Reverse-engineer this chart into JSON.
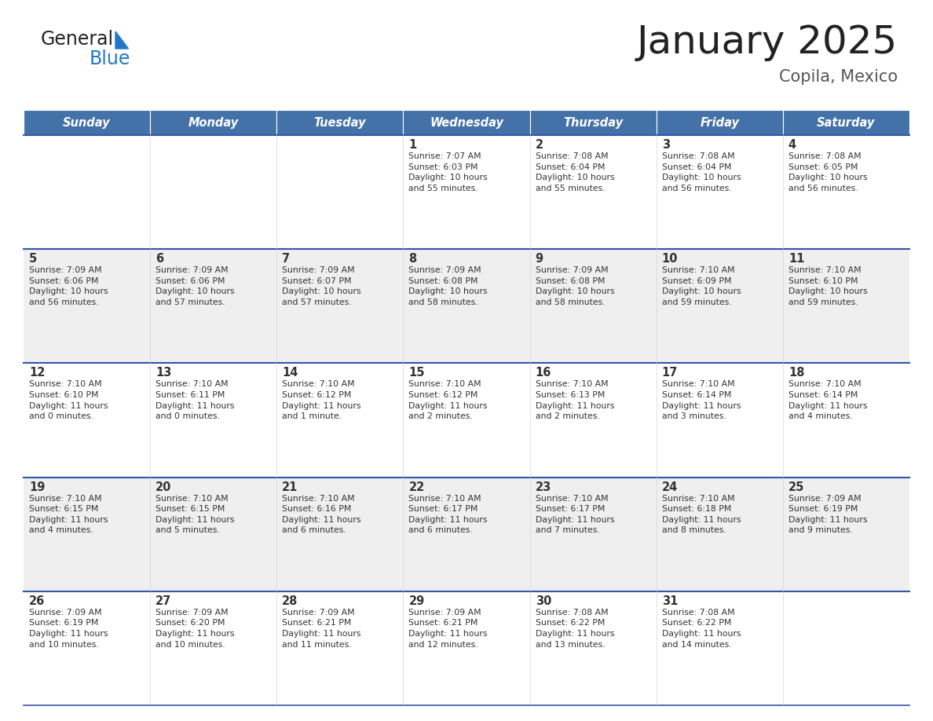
{
  "title": "January 2025",
  "subtitle": "Copila, Mexico",
  "header_color": "#4472A8",
  "header_text_color": "#FFFFFF",
  "days_of_week": [
    "Sunday",
    "Monday",
    "Tuesday",
    "Wednesday",
    "Thursday",
    "Friday",
    "Saturday"
  ],
  "background_color": "#FFFFFF",
  "cell_bg_white": "#FFFFFF",
  "cell_bg_gray": "#EFEFEF",
  "row_line_color": "#3355AA",
  "text_color": "#333333",
  "title_color": "#222222",
  "subtitle_color": "#555555",
  "logo_general_color": "#222222",
  "logo_blue_color": "#2277CC",
  "logo_triangle_color": "#2277CC",
  "calendar": [
    [
      {
        "day": "",
        "info": ""
      },
      {
        "day": "",
        "info": ""
      },
      {
        "day": "",
        "info": ""
      },
      {
        "day": "1",
        "info": "Sunrise: 7:07 AM\nSunset: 6:03 PM\nDaylight: 10 hours\nand 55 minutes."
      },
      {
        "day": "2",
        "info": "Sunrise: 7:08 AM\nSunset: 6:04 PM\nDaylight: 10 hours\nand 55 minutes."
      },
      {
        "day": "3",
        "info": "Sunrise: 7:08 AM\nSunset: 6:04 PM\nDaylight: 10 hours\nand 56 minutes."
      },
      {
        "day": "4",
        "info": "Sunrise: 7:08 AM\nSunset: 6:05 PM\nDaylight: 10 hours\nand 56 minutes."
      }
    ],
    [
      {
        "day": "5",
        "info": "Sunrise: 7:09 AM\nSunset: 6:06 PM\nDaylight: 10 hours\nand 56 minutes."
      },
      {
        "day": "6",
        "info": "Sunrise: 7:09 AM\nSunset: 6:06 PM\nDaylight: 10 hours\nand 57 minutes."
      },
      {
        "day": "7",
        "info": "Sunrise: 7:09 AM\nSunset: 6:07 PM\nDaylight: 10 hours\nand 57 minutes."
      },
      {
        "day": "8",
        "info": "Sunrise: 7:09 AM\nSunset: 6:08 PM\nDaylight: 10 hours\nand 58 minutes."
      },
      {
        "day": "9",
        "info": "Sunrise: 7:09 AM\nSunset: 6:08 PM\nDaylight: 10 hours\nand 58 minutes."
      },
      {
        "day": "10",
        "info": "Sunrise: 7:10 AM\nSunset: 6:09 PM\nDaylight: 10 hours\nand 59 minutes."
      },
      {
        "day": "11",
        "info": "Sunrise: 7:10 AM\nSunset: 6:10 PM\nDaylight: 10 hours\nand 59 minutes."
      }
    ],
    [
      {
        "day": "12",
        "info": "Sunrise: 7:10 AM\nSunset: 6:10 PM\nDaylight: 11 hours\nand 0 minutes."
      },
      {
        "day": "13",
        "info": "Sunrise: 7:10 AM\nSunset: 6:11 PM\nDaylight: 11 hours\nand 0 minutes."
      },
      {
        "day": "14",
        "info": "Sunrise: 7:10 AM\nSunset: 6:12 PM\nDaylight: 11 hours\nand 1 minute."
      },
      {
        "day": "15",
        "info": "Sunrise: 7:10 AM\nSunset: 6:12 PM\nDaylight: 11 hours\nand 2 minutes."
      },
      {
        "day": "16",
        "info": "Sunrise: 7:10 AM\nSunset: 6:13 PM\nDaylight: 11 hours\nand 2 minutes."
      },
      {
        "day": "17",
        "info": "Sunrise: 7:10 AM\nSunset: 6:14 PM\nDaylight: 11 hours\nand 3 minutes."
      },
      {
        "day": "18",
        "info": "Sunrise: 7:10 AM\nSunset: 6:14 PM\nDaylight: 11 hours\nand 4 minutes."
      }
    ],
    [
      {
        "day": "19",
        "info": "Sunrise: 7:10 AM\nSunset: 6:15 PM\nDaylight: 11 hours\nand 4 minutes."
      },
      {
        "day": "20",
        "info": "Sunrise: 7:10 AM\nSunset: 6:15 PM\nDaylight: 11 hours\nand 5 minutes."
      },
      {
        "day": "21",
        "info": "Sunrise: 7:10 AM\nSunset: 6:16 PM\nDaylight: 11 hours\nand 6 minutes."
      },
      {
        "day": "22",
        "info": "Sunrise: 7:10 AM\nSunset: 6:17 PM\nDaylight: 11 hours\nand 6 minutes."
      },
      {
        "day": "23",
        "info": "Sunrise: 7:10 AM\nSunset: 6:17 PM\nDaylight: 11 hours\nand 7 minutes."
      },
      {
        "day": "24",
        "info": "Sunrise: 7:10 AM\nSunset: 6:18 PM\nDaylight: 11 hours\nand 8 minutes."
      },
      {
        "day": "25",
        "info": "Sunrise: 7:09 AM\nSunset: 6:19 PM\nDaylight: 11 hours\nand 9 minutes."
      }
    ],
    [
      {
        "day": "26",
        "info": "Sunrise: 7:09 AM\nSunset: 6:19 PM\nDaylight: 11 hours\nand 10 minutes."
      },
      {
        "day": "27",
        "info": "Sunrise: 7:09 AM\nSunset: 6:20 PM\nDaylight: 11 hours\nand 10 minutes."
      },
      {
        "day": "28",
        "info": "Sunrise: 7:09 AM\nSunset: 6:21 PM\nDaylight: 11 hours\nand 11 minutes."
      },
      {
        "day": "29",
        "info": "Sunrise: 7:09 AM\nSunset: 6:21 PM\nDaylight: 11 hours\nand 12 minutes."
      },
      {
        "day": "30",
        "info": "Sunrise: 7:08 AM\nSunset: 6:22 PM\nDaylight: 11 hours\nand 13 minutes."
      },
      {
        "day": "31",
        "info": "Sunrise: 7:08 AM\nSunset: 6:22 PM\nDaylight: 11 hours\nand 14 minutes."
      },
      {
        "day": "",
        "info": ""
      }
    ]
  ]
}
